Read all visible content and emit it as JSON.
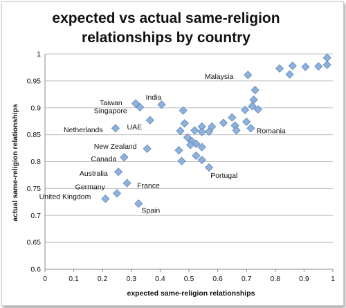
{
  "chart_data": {
    "type": "scatter",
    "title_lines": [
      "expected vs actual same-religion",
      "relationships by country"
    ],
    "xlabel": "expected same-religion relationships",
    "ylabel": "actual same-religion relationships",
    "xlim": [
      0,
      1
    ],
    "ylim": [
      0.6,
      1
    ],
    "x_ticks": [
      "0",
      "0.1",
      "0.2",
      "0.3",
      "0.4",
      "0.5",
      "0.6",
      "0.7",
      "0.8",
      "0.9",
      "1"
    ],
    "y_ticks": [
      "0.6",
      "0.65",
      "0.7",
      "0.75",
      "0.8",
      "0.85",
      "0.9",
      "0.95",
      "1"
    ],
    "grid": "horizontal",
    "legend": "none",
    "marker_color": "#8fb2dc",
    "marker_edge": "#5b84b8",
    "points": [
      {
        "x": 0.98,
        "y": 0.993
      },
      {
        "x": 0.98,
        "y": 0.98
      },
      {
        "x": 0.95,
        "y": 0.977
      },
      {
        "x": 0.905,
        "y": 0.976
      },
      {
        "x": 0.86,
        "y": 0.978
      },
      {
        "x": 0.815,
        "y": 0.973
      },
      {
        "x": 0.85,
        "y": 0.962
      },
      {
        "x": 0.705,
        "y": 0.961
      },
      {
        "x": 0.73,
        "y": 0.933
      },
      {
        "x": 0.725,
        "y": 0.915
      },
      {
        "x": 0.72,
        "y": 0.903
      },
      {
        "x": 0.74,
        "y": 0.897
      },
      {
        "x": 0.695,
        "y": 0.896
      },
      {
        "x": 0.65,
        "y": 0.882
      },
      {
        "x": 0.7,
        "y": 0.874
      },
      {
        "x": 0.66,
        "y": 0.867
      },
      {
        "x": 0.715,
        "y": 0.862
      },
      {
        "x": 0.665,
        "y": 0.858
      },
      {
        "x": 0.62,
        "y": 0.872
      },
      {
        "x": 0.58,
        "y": 0.865
      },
      {
        "x": 0.57,
        "y": 0.856
      },
      {
        "x": 0.545,
        "y": 0.865
      },
      {
        "x": 0.52,
        "y": 0.858
      },
      {
        "x": 0.545,
        "y": 0.855
      },
      {
        "x": 0.48,
        "y": 0.895
      },
      {
        "x": 0.485,
        "y": 0.871
      },
      {
        "x": 0.47,
        "y": 0.857
      },
      {
        "x": 0.495,
        "y": 0.845
      },
      {
        "x": 0.51,
        "y": 0.838
      },
      {
        "x": 0.525,
        "y": 0.833
      },
      {
        "x": 0.505,
        "y": 0.831
      },
      {
        "x": 0.545,
        "y": 0.827
      },
      {
        "x": 0.465,
        "y": 0.821
      },
      {
        "x": 0.525,
        "y": 0.811
      },
      {
        "x": 0.475,
        "y": 0.801
      },
      {
        "x": 0.545,
        "y": 0.803
      },
      {
        "x": 0.57,
        "y": 0.789
      },
      {
        "x": 0.405,
        "y": 0.906
      },
      {
        "x": 0.315,
        "y": 0.908
      },
      {
        "x": 0.33,
        "y": 0.901
      },
      {
        "x": 0.365,
        "y": 0.877
      },
      {
        "x": 0.245,
        "y": 0.862
      },
      {
        "x": 0.355,
        "y": 0.824
      },
      {
        "x": 0.275,
        "y": 0.808
      },
      {
        "x": 0.255,
        "y": 0.781
      },
      {
        "x": 0.285,
        "y": 0.76
      },
      {
        "x": 0.25,
        "y": 0.741
      },
      {
        "x": 0.21,
        "y": 0.731
      },
      {
        "x": 0.325,
        "y": 0.722
      }
    ],
    "annotations": [
      {
        "text": "Malaysia",
        "x": 0.555,
        "y": 0.959
      },
      {
        "text": "India",
        "x": 0.35,
        "y": 0.92
      },
      {
        "text": "Taiwan",
        "x": 0.19,
        "y": 0.91
      },
      {
        "text": "Singapore",
        "x": 0.17,
        "y": 0.895
      },
      {
        "text": "UAE",
        "x": 0.285,
        "y": 0.865
      },
      {
        "text": "Netherlands",
        "x": 0.065,
        "y": 0.86
      },
      {
        "text": "Romania",
        "x": 0.735,
        "y": 0.858
      },
      {
        "text": "New Zealand",
        "x": 0.17,
        "y": 0.829
      },
      {
        "text": "Canada",
        "x": 0.16,
        "y": 0.806
      },
      {
        "text": "Portugal",
        "x": 0.575,
        "y": 0.775
      },
      {
        "text": "Australia",
        "x": 0.12,
        "y": 0.779
      },
      {
        "text": "France",
        "x": 0.32,
        "y": 0.756
      },
      {
        "text": "Germany",
        "x": 0.105,
        "y": 0.754
      },
      {
        "text": "United Kingdom",
        "x": -0.02,
        "y": 0.736
      },
      {
        "text": "Spain",
        "x": 0.335,
        "y": 0.71
      }
    ]
  }
}
